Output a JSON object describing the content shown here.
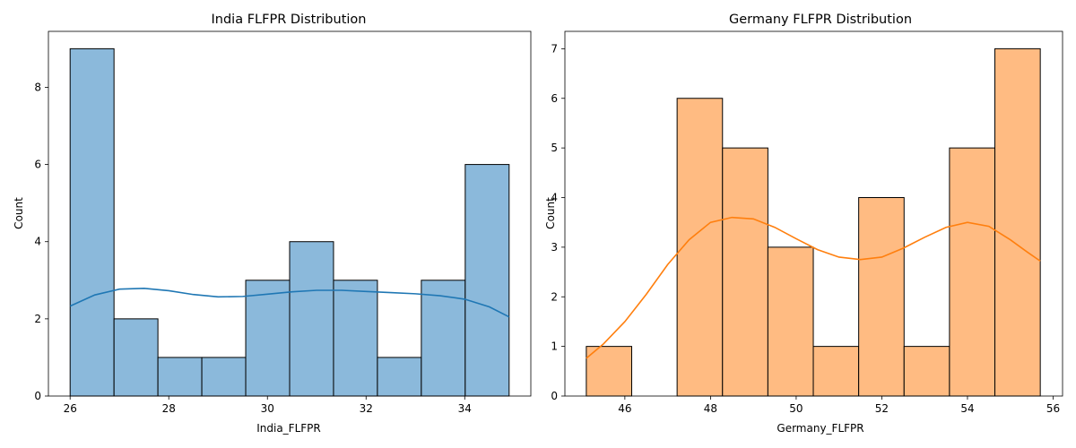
{
  "chart_data": [
    {
      "type": "bar",
      "title": "India FLFPR Distribution",
      "xlabel": "India_FLFPR",
      "ylabel": "Count",
      "xlim": [
        25.56,
        35.34
      ],
      "ylim": [
        0,
        9.45
      ],
      "xticks": [
        26,
        28,
        30,
        32,
        34
      ],
      "yticks": [
        0,
        2,
        4,
        6,
        8
      ],
      "bin_edges": [
        26.0,
        26.89,
        27.78,
        28.67,
        29.56,
        30.45,
        31.34,
        32.23,
        33.12,
        34.01,
        34.9
      ],
      "values": [
        9,
        2,
        1,
        1,
        3,
        4,
        3,
        1,
        3,
        6
      ],
      "bar_color": "#8bb9db",
      "line_color": "#1f77b4",
      "kde": {
        "x": [
          26.0,
          26.5,
          27.0,
          27.5,
          28.0,
          28.5,
          29.0,
          29.5,
          30.0,
          30.5,
          31.0,
          31.5,
          32.0,
          32.5,
          33.0,
          33.5,
          34.0,
          34.5,
          34.9
        ],
        "y": [
          2.33,
          2.62,
          2.77,
          2.79,
          2.73,
          2.63,
          2.57,
          2.58,
          2.64,
          2.7,
          2.74,
          2.74,
          2.71,
          2.68,
          2.65,
          2.6,
          2.51,
          2.31,
          2.05
        ]
      }
    },
    {
      "type": "bar",
      "title": "Germany FLFPR Distribution",
      "xlabel": "Germany_FLFPR",
      "ylabel": "Count",
      "xlim": [
        44.6,
        56.22
      ],
      "ylim": [
        0,
        7.35
      ],
      "xticks": [
        46,
        48,
        50,
        52,
        54,
        56
      ],
      "yticks": [
        0,
        1,
        2,
        3,
        4,
        5,
        6,
        7
      ],
      "bin_edges": [
        45.1,
        46.16,
        47.22,
        48.28,
        49.34,
        50.4,
        51.46,
        52.52,
        53.58,
        54.64,
        55.7
      ],
      "values": [
        1,
        0,
        6,
        5,
        3,
        1,
        4,
        1,
        5,
        7
      ],
      "bar_color": "#ffbb82",
      "line_color": "#ff7f0e",
      "kde": {
        "x": [
          45.1,
          45.5,
          46.0,
          46.5,
          47.0,
          47.5,
          48.0,
          48.5,
          49.0,
          49.5,
          50.0,
          50.5,
          51.0,
          51.5,
          52.0,
          52.5,
          53.0,
          53.5,
          54.0,
          54.5,
          55.0,
          55.4,
          55.7
        ],
        "y": [
          0.76,
          1.05,
          1.5,
          2.05,
          2.65,
          3.15,
          3.5,
          3.6,
          3.57,
          3.4,
          3.17,
          2.95,
          2.8,
          2.75,
          2.8,
          2.98,
          3.2,
          3.4,
          3.5,
          3.42,
          3.15,
          2.9,
          2.72
        ]
      }
    }
  ]
}
